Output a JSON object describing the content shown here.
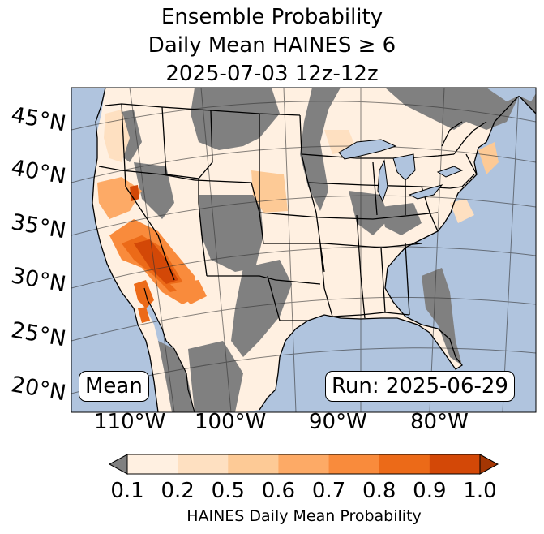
{
  "title": {
    "line1": "Ensemble Probability",
    "line2": "Daily Mean HAINES ≥ 6",
    "line3": "2025-07-03 12z-12z"
  },
  "map": {
    "lat_labels": [
      "45°N",
      "40°N",
      "35°N",
      "30°N",
      "25°N",
      "20°N"
    ],
    "lon_labels": [
      "110°W",
      "100°W",
      "90°W",
      "80°W"
    ],
    "mean_label": "Mean",
    "run_label": "Run: 2025-06-29",
    "colors": {
      "ocean": "#b0c4de",
      "no_data": "#808080",
      "land_low": "#fff0e1"
    }
  },
  "colorbar": {
    "ticks": [
      "0.1",
      "0.2",
      "0.5",
      "0.6",
      "0.7",
      "0.8",
      "0.9",
      "1.0"
    ],
    "colors": [
      "#fff0e1",
      "#fee0c1",
      "#fdca96",
      "#fdaa66",
      "#f98b3c",
      "#ec6a18",
      "#d34807"
    ],
    "under_color": "#808080",
    "over_color": "#a43603",
    "label": "HAINES Daily Mean Probability"
  }
}
